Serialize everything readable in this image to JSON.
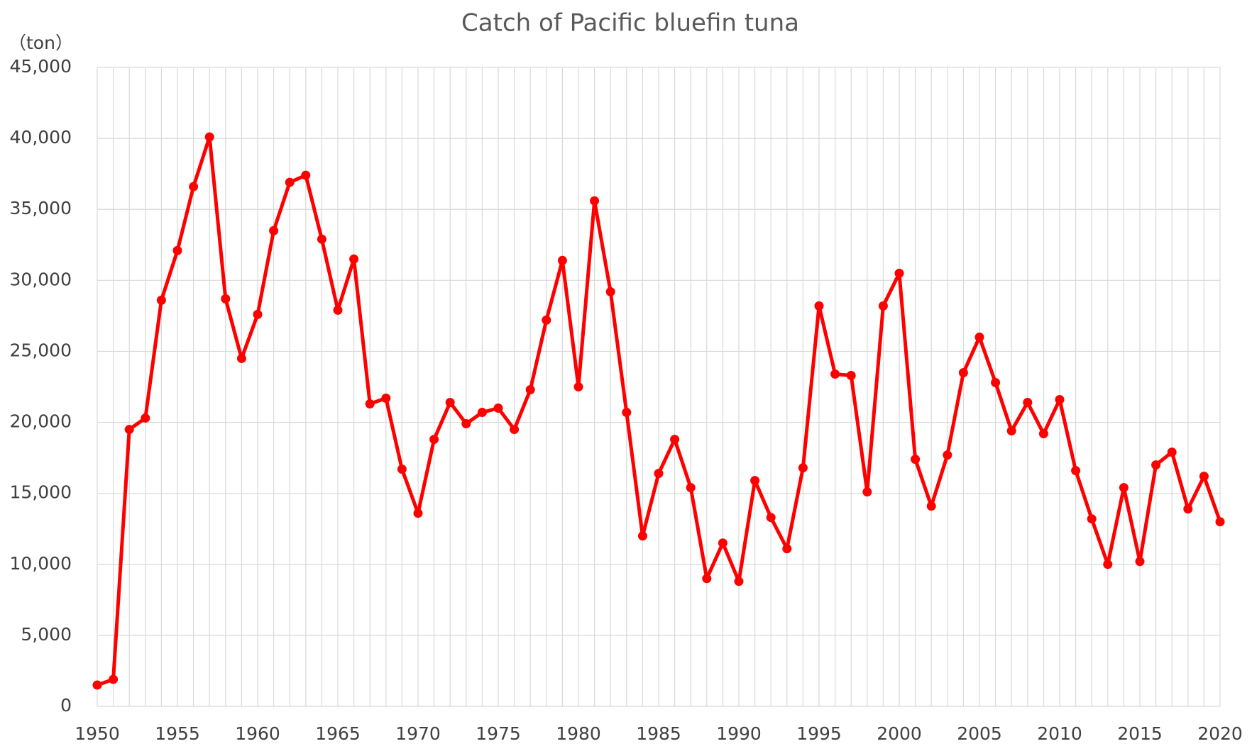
{
  "chart_data": {
    "type": "line",
    "title": "Catch of Pacific bluefin tuna",
    "y_label": "（ton）",
    "x": [
      1950,
      1951,
      1952,
      1953,
      1954,
      1955,
      1956,
      1957,
      1958,
      1959,
      1960,
      1961,
      1962,
      1963,
      1964,
      1965,
      1966,
      1967,
      1968,
      1969,
      1970,
      1971,
      1972,
      1973,
      1974,
      1975,
      1976,
      1977,
      1978,
      1979,
      1980,
      1981,
      1982,
      1983,
      1984,
      1985,
      1986,
      1987,
      1988,
      1989,
      1990,
      1991,
      1992,
      1993,
      1994,
      1995,
      1996,
      1997,
      1998,
      1999,
      2000,
      2001,
      2002,
      2003,
      2004,
      2005,
      2006,
      2007,
      2008,
      2009,
      2010,
      2011,
      2012,
      2013,
      2014,
      2015,
      2016,
      2017,
      2018,
      2019,
      2020
    ],
    "series": [
      {
        "name": "Catch",
        "color": "#ff0000",
        "values": [
          1500,
          1900,
          19500,
          20300,
          28600,
          32100,
          36600,
          40100,
          28700,
          24500,
          27600,
          33500,
          36900,
          37400,
          32900,
          27900,
          31500,
          21300,
          21700,
          16700,
          13600,
          18800,
          21400,
          19900,
          20700,
          21000,
          19500,
          22300,
          27200,
          31400,
          22500,
          35600,
          29200,
          20700,
          12000,
          16400,
          18800,
          15400,
          9000,
          11500,
          8800,
          15900,
          13300,
          11100,
          16800,
          28200,
          23400,
          23300,
          15100,
          28200,
          30500,
          17400,
          14100,
          17700,
          23500,
          26000,
          22800,
          19400,
          21400,
          19200,
          21600,
          16600,
          13200,
          10000,
          15400,
          10200,
          17000,
          17900,
          13900,
          16200,
          13000
        ]
      }
    ],
    "xlim": [
      1950,
      2020
    ],
    "xticks": [
      1950,
      1955,
      1960,
      1965,
      1970,
      1975,
      1980,
      1985,
      1990,
      1995,
      2000,
      2005,
      2010,
      2015,
      2020
    ],
    "ylim": [
      0,
      45000
    ],
    "yticks": [
      0,
      {
        "value": 5000,
        "label": "5,000"
      },
      {
        "value": 10000,
        "label": "10,000"
      },
      {
        "value": 15000,
        "label": "15,000"
      },
      {
        "value": 20000,
        "label": "20,000"
      },
      {
        "value": 25000,
        "label": "25,000"
      },
      {
        "value": 30000,
        "label": "30,000"
      },
      {
        "value": 35000,
        "label": "35,000"
      },
      {
        "value": 40000,
        "label": "40,000"
      },
      {
        "value": 45000,
        "label": "45,000"
      }
    ],
    "grid": true
  }
}
